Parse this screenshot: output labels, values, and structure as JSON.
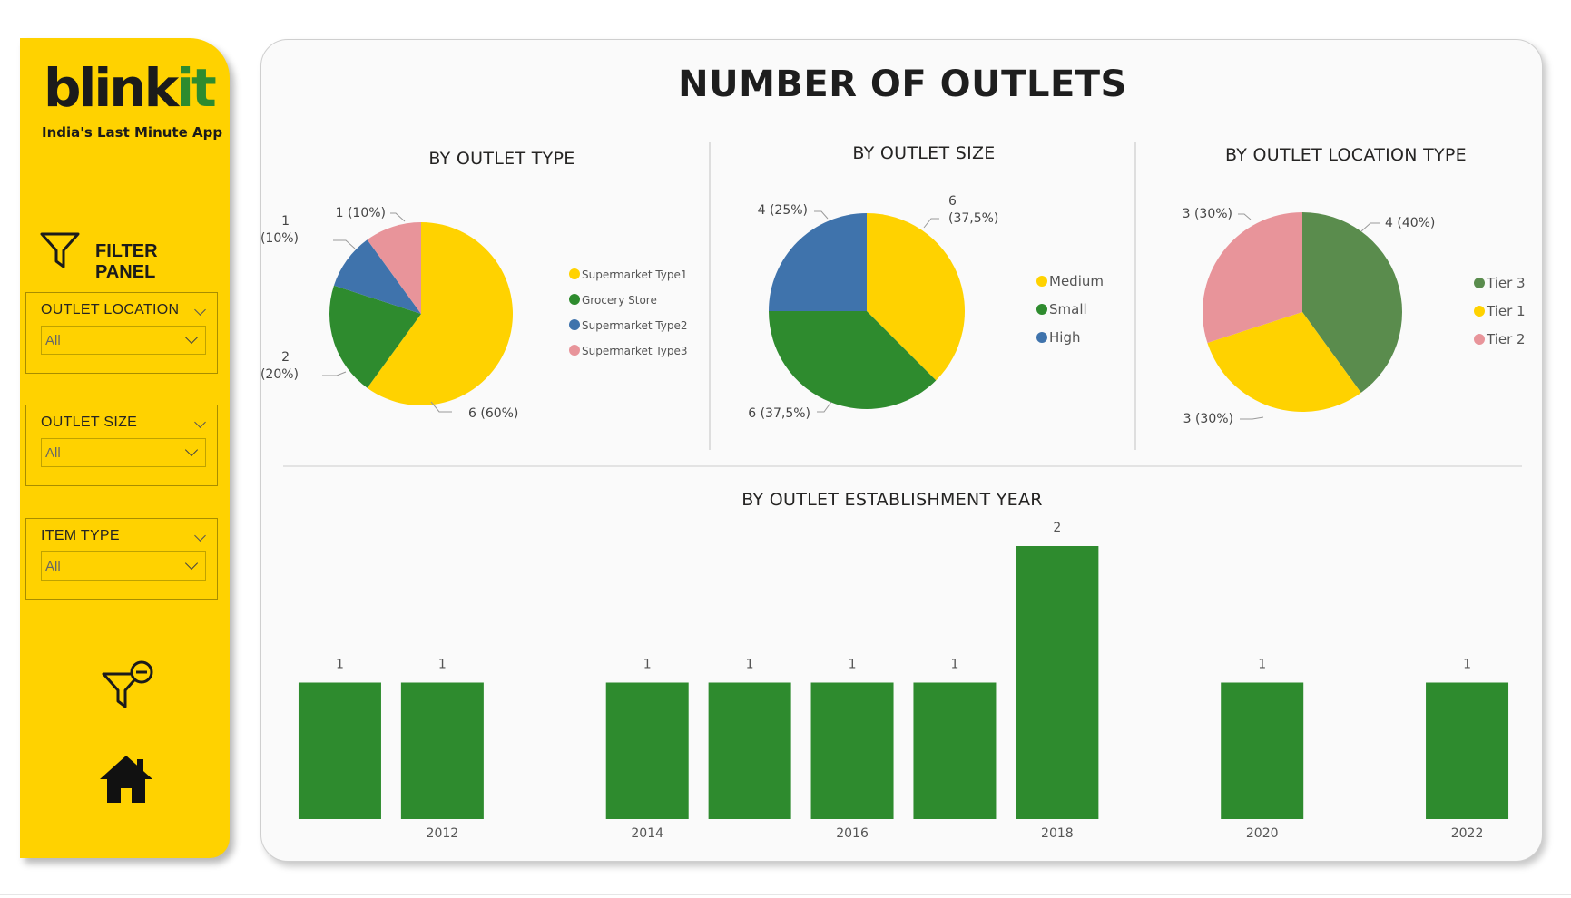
{
  "sidebar": {
    "logo": {
      "text_main": "blink",
      "text_accent": "it"
    },
    "tagline": "India's Last Minute App",
    "filter_panel_title": "FILTER PANEL",
    "slicers": [
      {
        "label": "OUTLET LOCATION",
        "value": "All"
      },
      {
        "label": "OUTLET SIZE",
        "value": "All"
      },
      {
        "label": "ITEM TYPE",
        "value": "All"
      }
    ],
    "icons": [
      "filter-icon",
      "clear-filter-icon",
      "home-icon"
    ]
  },
  "main": {
    "title": "NUMBER OF OUTLETS"
  },
  "colors": {
    "brand_yellow": "#FFD200",
    "green": "#2E8B2E",
    "olive_green": "#5A8C4D",
    "blue": "#3F73AC",
    "pink": "#E8949A",
    "yellow": "#FFD200"
  },
  "chart_data": [
    {
      "type": "pie",
      "title": "BY OUTLET TYPE",
      "categories": [
        "Supermarket Type1",
        "Grocery Store",
        "Supermarket Type2",
        "Supermarket Type3"
      ],
      "values": [
        6,
        2,
        1,
        1
      ],
      "data_labels": [
        "6 (60%)",
        "2 (20%)",
        "1 (10%)",
        "1 (10%)"
      ],
      "colors": [
        "#FFD200",
        "#2E8B2E",
        "#3F73AC",
        "#E8949A"
      ],
      "legend": "right"
    },
    {
      "type": "pie",
      "title": "BY OUTLET SIZE",
      "categories": [
        "Medium",
        "Small",
        "High"
      ],
      "values": [
        6,
        6,
        4
      ],
      "data_labels": [
        "6 (37,5%)",
        "6 (37,5%)",
        "4 (25%)"
      ],
      "colors": [
        "#FFD200",
        "#2E8B2E",
        "#3F73AC"
      ],
      "legend": "right"
    },
    {
      "type": "pie",
      "title": "BY OUTLET LOCATION TYPE",
      "categories": [
        "Tier 3",
        "Tier 1",
        "Tier 2"
      ],
      "values": [
        4,
        3,
        3
      ],
      "data_labels": [
        "4 (40%)",
        "3 (30%)",
        "3 (30%)"
      ],
      "colors": [
        "#5A8C4D",
        "#FFD200",
        "#E8949A"
      ],
      "legend": "right"
    },
    {
      "type": "bar",
      "title": "BY OUTLET ESTABLISHMENT YEAR",
      "categories": [
        "2011",
        "2012",
        "2013",
        "2014",
        "2015",
        "2016",
        "2017",
        "2018",
        "2019",
        "2020",
        "2021",
        "2022"
      ],
      "values": [
        1,
        1,
        0,
        1,
        1,
        1,
        1,
        2,
        0,
        1,
        0,
        1
      ],
      "tick_labels": [
        "2012",
        "2014",
        "2016",
        "2018",
        "2020",
        "2022"
      ],
      "ylim": [
        0,
        2
      ],
      "color": "#2E8B2E",
      "grid": false
    }
  ]
}
